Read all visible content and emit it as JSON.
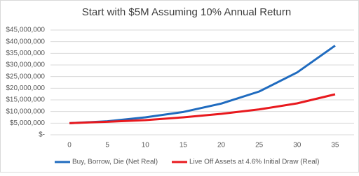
{
  "chart_data": {
    "type": "line",
    "title": "Start with $5M Assuming 10% Annual Return",
    "categories": [
      "0",
      "5",
      "10",
      "15",
      "20",
      "25",
      "30",
      "35"
    ],
    "series": [
      {
        "name": "Buy, Borrow, Die (Net Real)",
        "color": "#1f6bbf",
        "values": [
          5000000,
          5800000,
          7500000,
          9800000,
          13400000,
          18600000,
          26800000,
          38300000
        ]
      },
      {
        "name": "Live Off Assets at 4.6% Initial Draw (Real)",
        "color": "#e8191e",
        "values": [
          5000000,
          5600000,
          6300000,
          7500000,
          9000000,
          10900000,
          13500000,
          17400000
        ]
      }
    ],
    "ylim": [
      0,
      45000000
    ],
    "yticks": [
      {
        "value": 0,
        "label": "$-"
      },
      {
        "value": 5000000,
        "label": "$5,000,000"
      },
      {
        "value": 10000000,
        "label": "$10,000,000"
      },
      {
        "value": 15000000,
        "label": "$15,000,000"
      },
      {
        "value": 20000000,
        "label": "$20,000,000"
      },
      {
        "value": 25000000,
        "label": "$25,000,000"
      },
      {
        "value": 30000000,
        "label": "$30,000,000"
      },
      {
        "value": 35000000,
        "label": "$35,000,000"
      },
      {
        "value": 40000000,
        "label": "$40,000,000"
      },
      {
        "value": 45000000,
        "label": "$45,000,000"
      }
    ],
    "grid": true
  }
}
